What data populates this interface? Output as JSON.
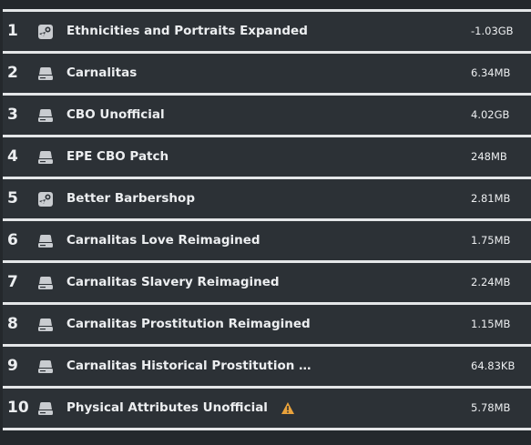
{
  "mods": [
    {
      "rank": 1,
      "source": "steam",
      "name": "Ethnicities and Portraits Expanded",
      "size": "-1.03GB",
      "warning": false
    },
    {
      "rank": 2,
      "source": "local",
      "name": "Carnalitas",
      "size": "6.34MB",
      "warning": false
    },
    {
      "rank": 3,
      "source": "local",
      "name": "CBO Unofficial",
      "size": "4.02GB",
      "warning": false
    },
    {
      "rank": 4,
      "source": "local",
      "name": "EPE CBO Patch",
      "size": "248MB",
      "warning": false
    },
    {
      "rank": 5,
      "source": "steam",
      "name": "Better Barbershop",
      "size": "2.81MB",
      "warning": false
    },
    {
      "rank": 6,
      "source": "local",
      "name": "Carnalitas Love Reimagined",
      "size": "1.75MB",
      "warning": false
    },
    {
      "rank": 7,
      "source": "local",
      "name": "Carnalitas Slavery Reimagined",
      "size": "2.24MB",
      "warning": false
    },
    {
      "rank": 8,
      "source": "local",
      "name": "Carnalitas Prostitution Reimagined",
      "size": "1.15MB",
      "warning": false
    },
    {
      "rank": 9,
      "source": "local",
      "name": "Carnalitas Historical Prostitution …",
      "size": "64.83KB",
      "warning": false
    },
    {
      "rank": 10,
      "source": "local",
      "name": "Physical Attributes Unofficial",
      "size": "5.78MB",
      "warning": true
    }
  ]
}
